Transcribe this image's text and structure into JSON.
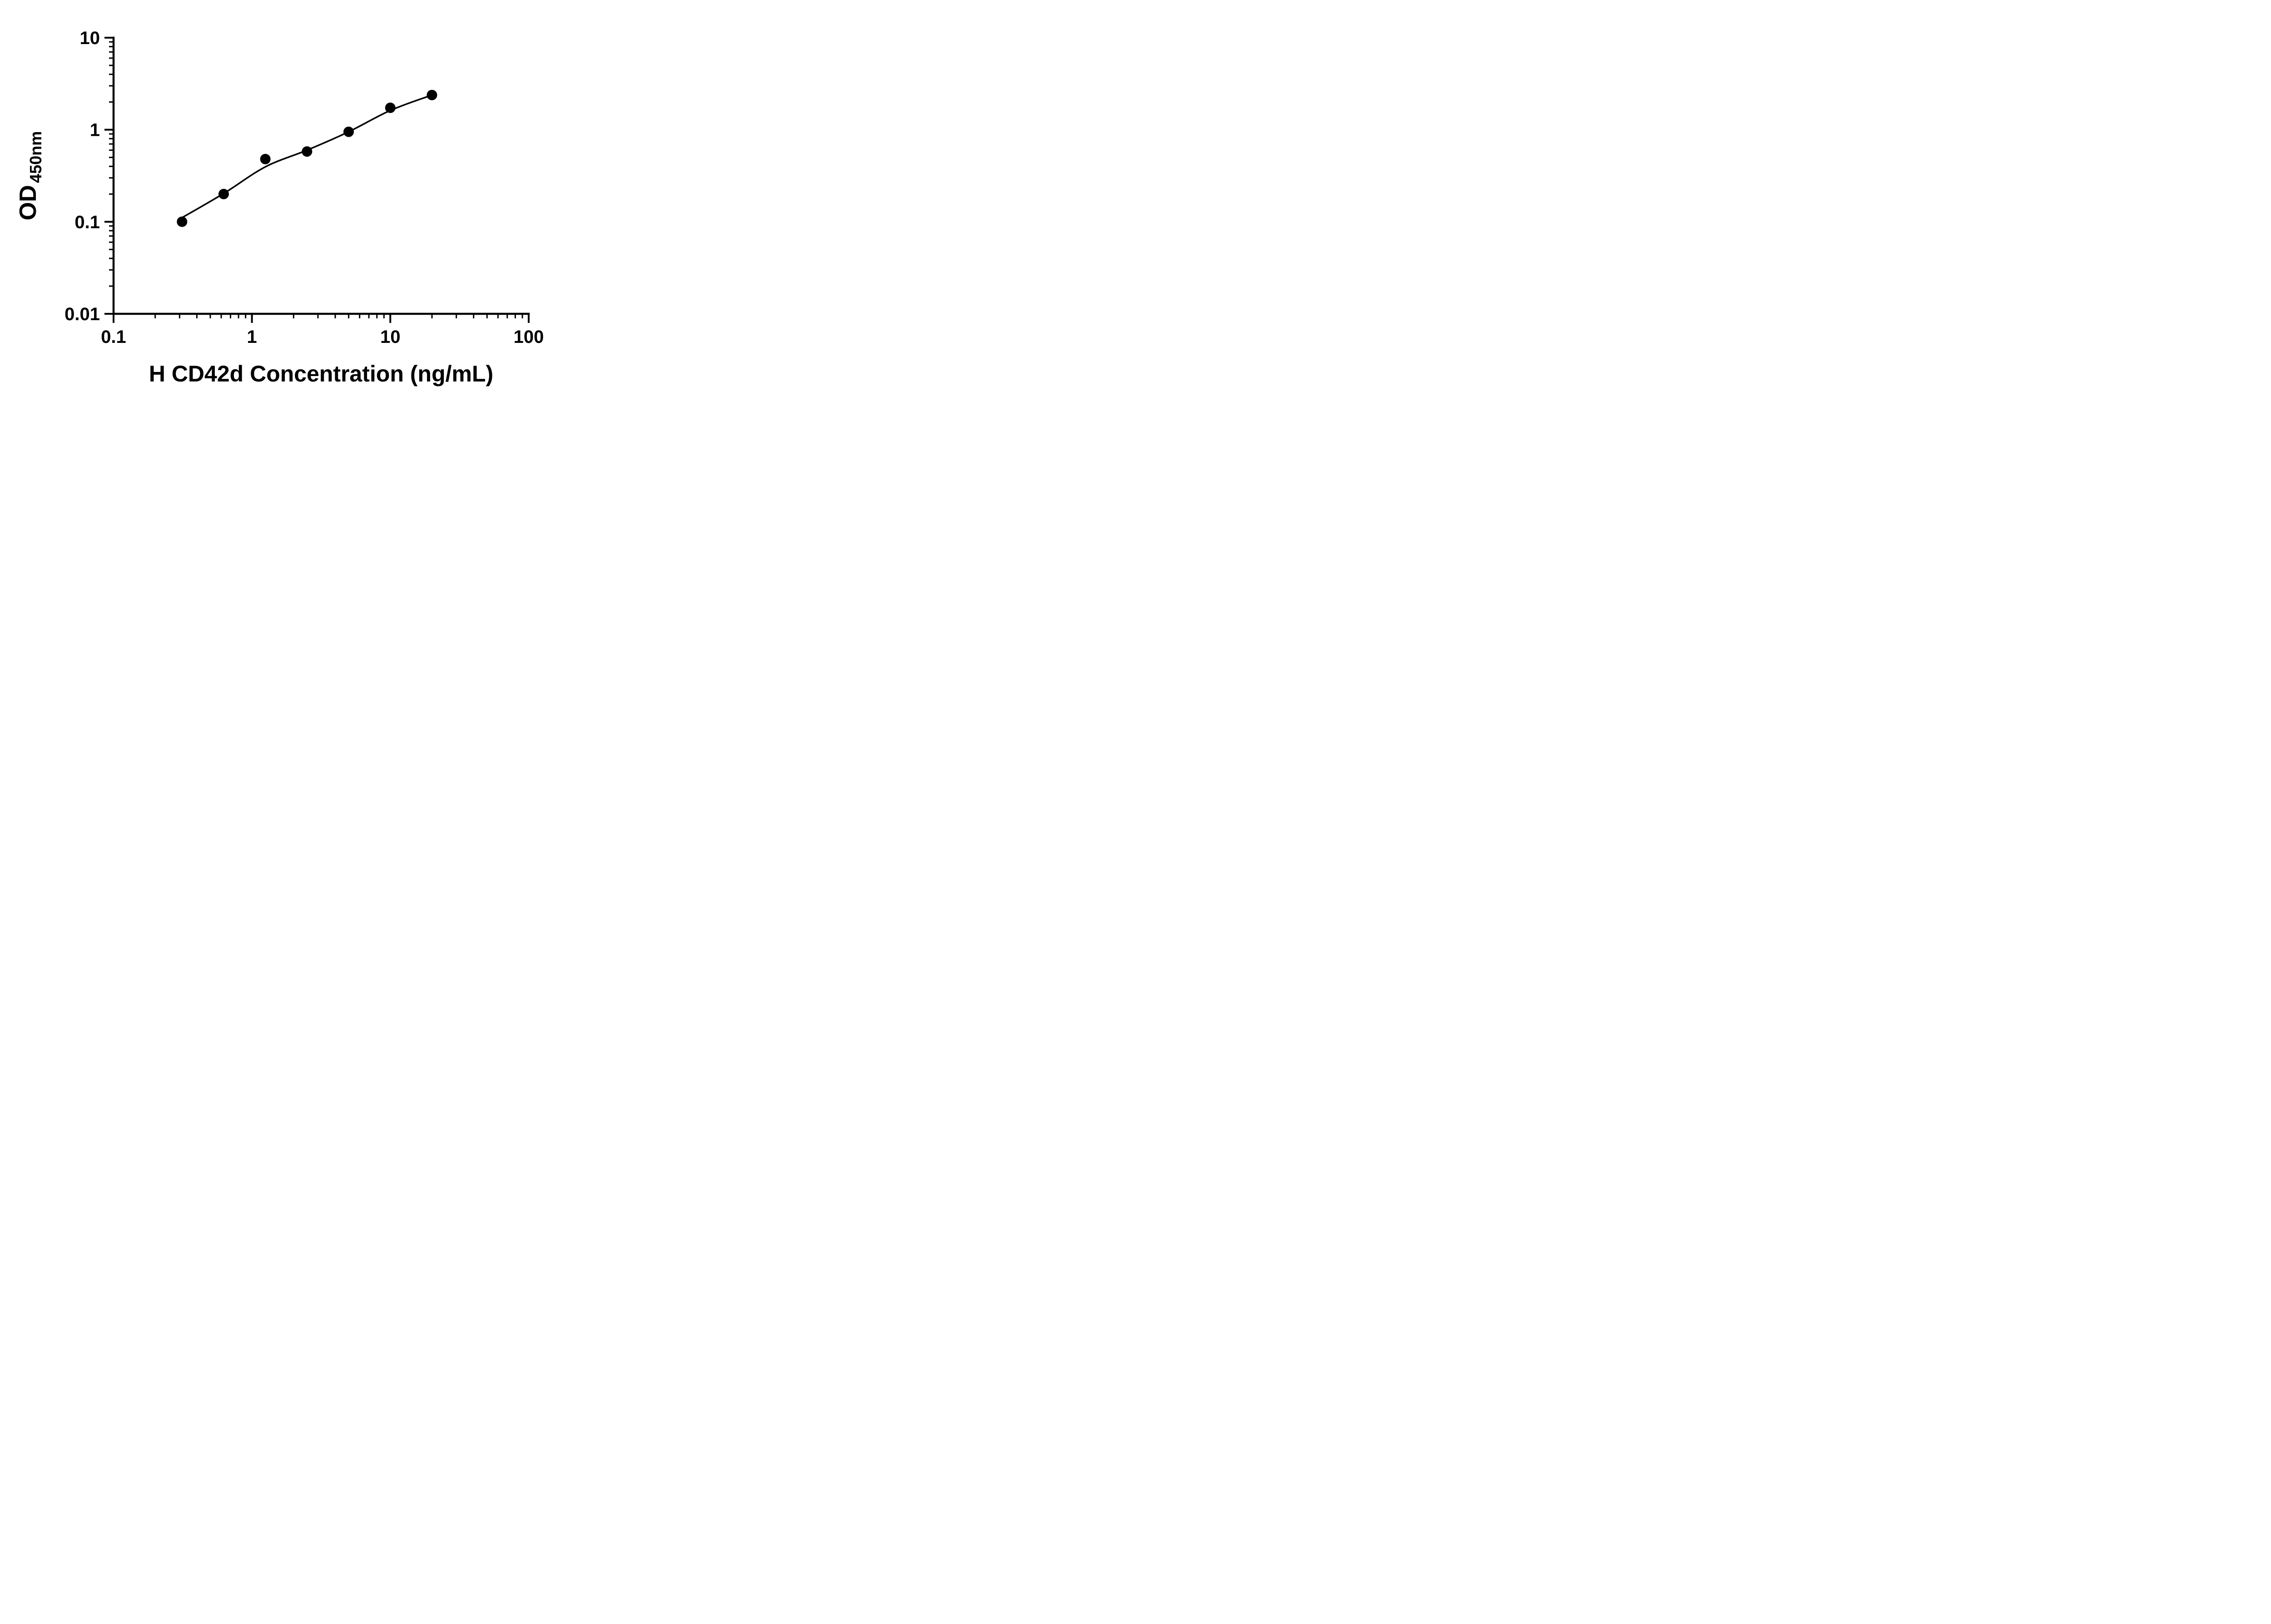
{
  "chart_data": {
    "type": "scatter",
    "title": "",
    "xlabel": "H CD42d Concentration (ng/mL)",
    "ylabel_base": "OD",
    "ylabel_sub": "450nm",
    "x_scale": "log10",
    "y_scale": "log10",
    "xlim": [
      0.1,
      100
    ],
    "ylim": [
      0.01,
      10
    ],
    "x_ticks": [
      0.1,
      1,
      10,
      100
    ],
    "x_tick_labels": [
      "0.1",
      "1",
      "10",
      "100"
    ],
    "y_ticks": [
      0.01,
      0.1,
      1,
      10
    ],
    "y_tick_labels": [
      "0.01",
      "0.1",
      "1",
      "10"
    ],
    "grid": false,
    "legend": "none",
    "marker_color": "#000000",
    "line_color": "#000000",
    "series": [
      {
        "marker": "circle",
        "color": "#000000",
        "points": [
          {
            "x": 0.3125,
            "y": 0.1
          },
          {
            "x": 0.625,
            "y": 0.2
          },
          {
            "x": 1.25,
            "y": 0.48
          },
          {
            "x": 2.5,
            "y": 0.58
          },
          {
            "x": 5,
            "y": 0.95
          },
          {
            "x": 10,
            "y": 1.73
          },
          {
            "x": 20,
            "y": 2.38
          }
        ]
      }
    ],
    "fit_curve": {
      "points": [
        {
          "x": 0.3,
          "y": 0.107
        },
        {
          "x": 0.625,
          "y": 0.203
        },
        {
          "x": 1.25,
          "y": 0.395
        },
        {
          "x": 2.5,
          "y": 0.6
        },
        {
          "x": 5,
          "y": 0.95
        },
        {
          "x": 10,
          "y": 1.62
        },
        {
          "x": 20,
          "y": 2.38
        }
      ]
    }
  }
}
